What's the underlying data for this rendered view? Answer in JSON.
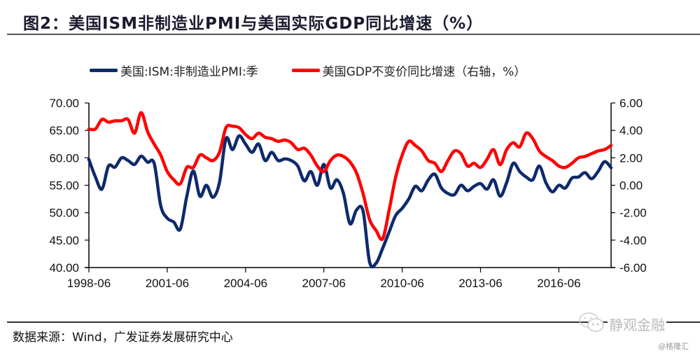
{
  "header": {
    "title": "图2：美国ISM非制造业PMI与美国实际GDP同比增速（%）"
  },
  "footer": {
    "source": "数据来源：Wind，广发证券发展研究中心"
  },
  "watermark": {
    "text": "静观金融",
    "icon": "wechat-icon",
    "credit": "@格隆汇"
  },
  "chart_data": {
    "type": "line",
    "title": "图2：美国ISM非制造业PMI与美国实际GDP同比增速（%）",
    "xlabel": "",
    "ylabel": "",
    "x_tick_labels": [
      "1998-06",
      "2001-06",
      "2004-06",
      "2007-06",
      "2010-06",
      "2013-06",
      "2016-06"
    ],
    "x_start": "1998-06",
    "x_end": "2018-06",
    "x_frequency": "quarterly",
    "left_axis": {
      "min": 40,
      "max": 70,
      "step": 5,
      "tick_labels": [
        "40.00",
        "45.00",
        "50.00",
        "55.00",
        "60.00",
        "65.00",
        "70.00"
      ]
    },
    "right_axis": {
      "min": -6,
      "max": 6,
      "step": 2,
      "tick_labels": [
        "-6.00",
        "-4.00",
        "-2.00",
        "0.00",
        "2.00",
        "4.00",
        "6.00"
      ]
    },
    "grid": false,
    "legend_position": "top",
    "series": [
      {
        "name": "美国:ISM:非制造业PMI:季",
        "axis": "left",
        "color": "#0d2a6b",
        "values": [
          59.7,
          56.5,
          54.3,
          58.5,
          58.3,
          60.0,
          59.5,
          58.8,
          60.3,
          59.2,
          59.0,
          51.3,
          49.0,
          48.3,
          47.0,
          53.0,
          57.6,
          53.0,
          55.0,
          52.8,
          55.5,
          63.5,
          61.5,
          64.0,
          62.5,
          61.0,
          62.5,
          59.5,
          61.0,
          59.5,
          59.8,
          59.5,
          58.5,
          55.8,
          57.5,
          55.0,
          58.8,
          54.5,
          56.0,
          53.5,
          48.0,
          50.5,
          50.3,
          41.0,
          40.8,
          43.5,
          46.5,
          49.5,
          50.8,
          52.5,
          54.8,
          54.0,
          56.0,
          57.0,
          54.5,
          53.5,
          53.3,
          55.0,
          54.0,
          54.8,
          55.3,
          54.3,
          56.0,
          53.0,
          55.5,
          59.0,
          57.5,
          56.5,
          56.0,
          58.5,
          55.5,
          53.8,
          55.0,
          54.5,
          56.3,
          56.5,
          57.3,
          56.2,
          57.5,
          59.3,
          58.2
        ]
      },
      {
        "name": "美国GDP不变价同比增速（右轴，%）",
        "axis": "right",
        "color": "#ff0000",
        "values": [
          4.1,
          4.1,
          4.8,
          4.6,
          4.7,
          4.7,
          4.8,
          3.8,
          5.3,
          3.9,
          3.0,
          2.2,
          1.0,
          0.4,
          0.1,
          1.3,
          1.3,
          2.2,
          2.0,
          1.8,
          2.4,
          4.2,
          4.3,
          4.2,
          3.7,
          3.4,
          3.8,
          3.5,
          3.4,
          3.2,
          3.3,
          3.1,
          2.6,
          2.7,
          2.2,
          1.4,
          1.0,
          1.8,
          2.2,
          2.1,
          1.7,
          0.9,
          -0.6,
          -2.5,
          -3.3,
          -3.9,
          -1.8,
          0.6,
          2.2,
          3.2,
          2.9,
          2.5,
          1.8,
          1.6,
          1.0,
          1.8,
          2.5,
          2.3,
          1.4,
          1.6,
          1.3,
          1.9,
          2.6,
          1.5,
          2.6,
          3.1,
          2.8,
          3.8,
          3.4,
          2.5,
          2.1,
          1.8,
          1.4,
          1.3,
          1.6,
          2.0,
          2.1,
          2.3,
          2.5,
          2.6,
          2.9
        ]
      }
    ]
  }
}
